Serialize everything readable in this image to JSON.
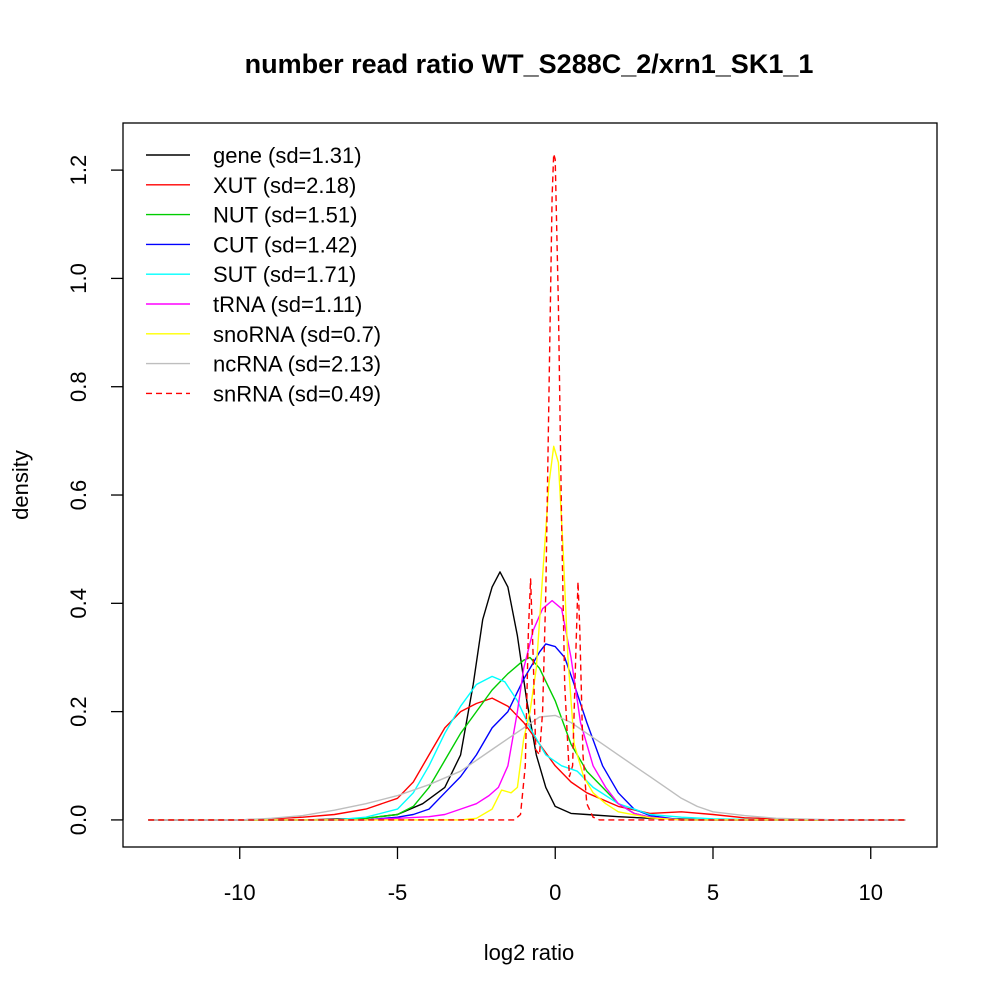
{
  "chart_data": {
    "type": "line",
    "title": "number read ratio WT_S288C_2/xrn1_SK1_1",
    "xlabel": "log2 ratio",
    "ylabel": "density",
    "xlim": [
      -13.7,
      12.1
    ],
    "ylim": [
      -0.05,
      1.287
    ],
    "x_ticks": [
      -10,
      -5,
      0,
      5,
      10
    ],
    "x_tick_labels": [
      "-10",
      "-5",
      "0",
      "5",
      "10"
    ],
    "y_ticks": [
      0.0,
      0.2,
      0.4,
      0.6,
      0.8,
      1.0,
      1.2
    ],
    "y_tick_labels": [
      "0.0",
      "0.2",
      "0.4",
      "0.6",
      "0.8",
      "1.0",
      "1.2"
    ],
    "grid": false,
    "legend_position": "top-left",
    "series": [
      {
        "name": "gene (sd=1.31)",
        "color": "#000000",
        "dash": false,
        "points": [
          [
            -12.9,
            0
          ],
          [
            -8,
            0
          ],
          [
            -6,
            0.003
          ],
          [
            -5,
            0.01
          ],
          [
            -4.2,
            0.03
          ],
          [
            -3.5,
            0.06
          ],
          [
            -3,
            0.12
          ],
          [
            -2.6,
            0.25
          ],
          [
            -2.3,
            0.37
          ],
          [
            -2.0,
            0.43
          ],
          [
            -1.75,
            0.458
          ],
          [
            -1.5,
            0.43
          ],
          [
            -1.2,
            0.34
          ],
          [
            -0.9,
            0.22
          ],
          [
            -0.6,
            0.12
          ],
          [
            -0.3,
            0.06
          ],
          [
            0,
            0.025
          ],
          [
            0.5,
            0.012
          ],
          [
            1,
            0.01
          ],
          [
            2,
            0.006
          ],
          [
            3,
            0.003
          ],
          [
            5,
            0
          ],
          [
            11.1,
            0
          ]
        ]
      },
      {
        "name": "XUT (sd=2.18)",
        "color": "#ff0000",
        "dash": false,
        "points": [
          [
            -12.9,
            0
          ],
          [
            -10,
            0
          ],
          [
            -9,
            0.002
          ],
          [
            -8,
            0.005
          ],
          [
            -7,
            0.01
          ],
          [
            -6,
            0.02
          ],
          [
            -5,
            0.04
          ],
          [
            -4.5,
            0.07
          ],
          [
            -4,
            0.12
          ],
          [
            -3.5,
            0.17
          ],
          [
            -3,
            0.2
          ],
          [
            -2.5,
            0.215
          ],
          [
            -2,
            0.225
          ],
          [
            -1.5,
            0.21
          ],
          [
            -1,
            0.18
          ],
          [
            -0.5,
            0.14
          ],
          [
            0,
            0.1
          ],
          [
            0.5,
            0.07
          ],
          [
            1,
            0.05
          ],
          [
            2,
            0.025
          ],
          [
            3,
            0.012
          ],
          [
            4,
            0.015
          ],
          [
            5,
            0.01
          ],
          [
            6,
            0.004
          ],
          [
            8,
            0
          ],
          [
            11.1,
            0
          ]
        ]
      },
      {
        "name": "NUT (sd=1.51)",
        "color": "#00cd00",
        "dash": false,
        "points": [
          [
            -12.9,
            0
          ],
          [
            -7,
            0
          ],
          [
            -6,
            0.003
          ],
          [
            -5,
            0.01
          ],
          [
            -4.5,
            0.025
          ],
          [
            -4,
            0.06
          ],
          [
            -3.5,
            0.11
          ],
          [
            -3,
            0.16
          ],
          [
            -2.5,
            0.2
          ],
          [
            -2,
            0.24
          ],
          [
            -1.5,
            0.27
          ],
          [
            -1,
            0.295
          ],
          [
            -0.8,
            0.3
          ],
          [
            -0.5,
            0.28
          ],
          [
            0,
            0.22
          ],
          [
            0.5,
            0.14
          ],
          [
            1,
            0.09
          ],
          [
            1.5,
            0.06
          ],
          [
            2,
            0.03
          ],
          [
            2.5,
            0.012
          ],
          [
            3,
            0.005
          ],
          [
            4,
            0
          ],
          [
            11.1,
            0
          ]
        ]
      },
      {
        "name": "CUT (sd=1.42)",
        "color": "#0000ff",
        "dash": false,
        "points": [
          [
            -12.9,
            0
          ],
          [
            -6,
            0
          ],
          [
            -5,
            0.005
          ],
          [
            -4.5,
            0.01
          ],
          [
            -4,
            0.02
          ],
          [
            -3.5,
            0.05
          ],
          [
            -3,
            0.08
          ],
          [
            -2.5,
            0.12
          ],
          [
            -2,
            0.17
          ],
          [
            -1.5,
            0.2
          ],
          [
            -1,
            0.26
          ],
          [
            -0.5,
            0.31
          ],
          [
            -0.3,
            0.325
          ],
          [
            0,
            0.32
          ],
          [
            0.3,
            0.3
          ],
          [
            0.6,
            0.25
          ],
          [
            1,
            0.18
          ],
          [
            1.5,
            0.1
          ],
          [
            2,
            0.05
          ],
          [
            2.5,
            0.02
          ],
          [
            3,
            0.008
          ],
          [
            4,
            0
          ],
          [
            11.1,
            0
          ]
        ]
      },
      {
        "name": "SUT (sd=1.71)",
        "color": "#00ffff",
        "dash": false,
        "points": [
          [
            -12.9,
            0
          ],
          [
            -7,
            0
          ],
          [
            -6,
            0.005
          ],
          [
            -5,
            0.02
          ],
          [
            -4.5,
            0.05
          ],
          [
            -4,
            0.1
          ],
          [
            -3.5,
            0.16
          ],
          [
            -3,
            0.21
          ],
          [
            -2.5,
            0.25
          ],
          [
            -2,
            0.265
          ],
          [
            -1.6,
            0.255
          ],
          [
            -1.2,
            0.22
          ],
          [
            -0.8,
            0.17
          ],
          [
            -0.3,
            0.12
          ],
          [
            0.2,
            0.1
          ],
          [
            0.7,
            0.09
          ],
          [
            1.2,
            0.06
          ],
          [
            2,
            0.03
          ],
          [
            3,
            0.01
          ],
          [
            4,
            0.005
          ],
          [
            5,
            0.002
          ],
          [
            7,
            0
          ],
          [
            11.1,
            0
          ]
        ]
      },
      {
        "name": "tRNA (sd=1.11)",
        "color": "#ff00ff",
        "dash": false,
        "points": [
          [
            -12.9,
            0
          ],
          [
            -6,
            0
          ],
          [
            -5,
            0.003
          ],
          [
            -4,
            0.006
          ],
          [
            -3.5,
            0.01
          ],
          [
            -3,
            0.02
          ],
          [
            -2.5,
            0.03
          ],
          [
            -2.1,
            0.045
          ],
          [
            -1.8,
            0.06
          ],
          [
            -1.5,
            0.1
          ],
          [
            -1.2,
            0.2
          ],
          [
            -1,
            0.28
          ],
          [
            -0.7,
            0.35
          ],
          [
            -0.4,
            0.39
          ],
          [
            -0.1,
            0.405
          ],
          [
            0.2,
            0.39
          ],
          [
            0.5,
            0.3
          ],
          [
            0.8,
            0.18
          ],
          [
            1.2,
            0.1
          ],
          [
            1.6,
            0.06
          ],
          [
            2,
            0.03
          ],
          [
            2.5,
            0.012
          ],
          [
            3,
            0.005
          ],
          [
            4,
            0
          ],
          [
            11.1,
            0
          ]
        ]
      },
      {
        "name": "snoRNA (sd=0.7)",
        "color": "#ffff00",
        "dash": false,
        "points": [
          [
            -12.9,
            0
          ],
          [
            -3,
            0
          ],
          [
            -2.5,
            0.003
          ],
          [
            -2,
            0.02
          ],
          [
            -1.7,
            0.055
          ],
          [
            -1.4,
            0.05
          ],
          [
            -1.2,
            0.06
          ],
          [
            -1,
            0.15
          ],
          [
            -0.8,
            0.2
          ],
          [
            -0.6,
            0.28
          ],
          [
            -0.4,
            0.45
          ],
          [
            -0.2,
            0.62
          ],
          [
            -0.05,
            0.69
          ],
          [
            0.1,
            0.66
          ],
          [
            0.25,
            0.5
          ],
          [
            0.4,
            0.3
          ],
          [
            0.6,
            0.14
          ],
          [
            0.9,
            0.08
          ],
          [
            1.2,
            0.05
          ],
          [
            1.6,
            0.03
          ],
          [
            2,
            0.015
          ],
          [
            3,
            0.004
          ],
          [
            4,
            0
          ],
          [
            11.1,
            0
          ]
        ]
      },
      {
        "name": "ncRNA (sd=2.13)",
        "color": "#bebebe",
        "dash": false,
        "points": [
          [
            -12.9,
            0
          ],
          [
            -10,
            0
          ],
          [
            -9,
            0.003
          ],
          [
            -8,
            0.008
          ],
          [
            -7,
            0.018
          ],
          [
            -6,
            0.03
          ],
          [
            -5,
            0.045
          ],
          [
            -4,
            0.065
          ],
          [
            -3,
            0.09
          ],
          [
            -2,
            0.13
          ],
          [
            -1.5,
            0.15
          ],
          [
            -1,
            0.17
          ],
          [
            -0.5,
            0.19
          ],
          [
            0,
            0.193
          ],
          [
            0.5,
            0.18
          ],
          [
            1,
            0.16
          ],
          [
            1.5,
            0.14
          ],
          [
            2,
            0.12
          ],
          [
            2.5,
            0.1
          ],
          [
            3,
            0.08
          ],
          [
            3.5,
            0.06
          ],
          [
            4,
            0.04
          ],
          [
            4.5,
            0.025
          ],
          [
            5,
            0.015
          ],
          [
            6,
            0.008
          ],
          [
            7,
            0.003
          ],
          [
            9,
            0
          ],
          [
            11.1,
            0
          ]
        ]
      },
      {
        "name": "snRNA (sd=0.49)",
        "color": "#ff0000",
        "dash": true,
        "points": [
          [
            -12.9,
            0
          ],
          [
            -1.3,
            0
          ],
          [
            -1.1,
            0.01
          ],
          [
            -0.95,
            0.1
          ],
          [
            -0.85,
            0.35
          ],
          [
            -0.78,
            0.445
          ],
          [
            -0.7,
            0.3
          ],
          [
            -0.62,
            0.13
          ],
          [
            -0.5,
            0.12
          ],
          [
            -0.4,
            0.2
          ],
          [
            -0.3,
            0.42
          ],
          [
            -0.2,
            0.78
          ],
          [
            -0.1,
            1.15
          ],
          [
            -0.05,
            1.23
          ],
          [
            0,
            1.22
          ],
          [
            0.1,
            0.95
          ],
          [
            0.2,
            0.55
          ],
          [
            0.3,
            0.25
          ],
          [
            0.45,
            0.08
          ],
          [
            0.55,
            0.1
          ],
          [
            0.65,
            0.3
          ],
          [
            0.72,
            0.44
          ],
          [
            0.78,
            0.35
          ],
          [
            0.88,
            0.12
          ],
          [
            1,
            0.03
          ],
          [
            1.2,
            0.005
          ],
          [
            1.4,
            0
          ],
          [
            11.1,
            0
          ]
        ]
      }
    ]
  }
}
